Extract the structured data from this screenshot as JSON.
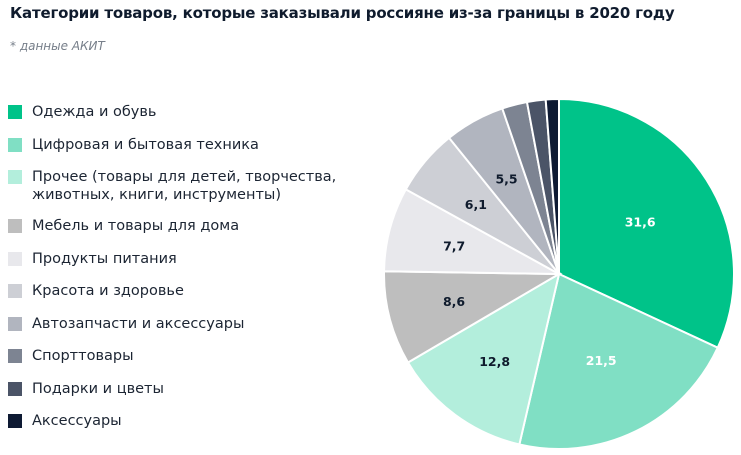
{
  "title": "Категории товаров, которые заказывали россияне из-за границы в 2020 году",
  "subtitle": "* данные АКИТ",
  "chart_data": {
    "type": "pie",
    "title": "Категории товаров, которые заказывали россияне из-за границы в 2020 году",
    "subtitle": "* данные АКИТ",
    "legend_position": "left",
    "start": "top, clockwise",
    "slices": [
      {
        "label": "Одежда и обувь",
        "value": 31.6,
        "value_label": "31,6",
        "color": "#00c389",
        "label_color": "#ffffff"
      },
      {
        "label": "Цифровая и бытовая техника",
        "value": 21.5,
        "value_label": "21,5",
        "color": "#80dfc4",
        "label_color": "#ffffff"
      },
      {
        "label": "Прочее (товары для детей, творчества, животных, книги, инструменты)",
        "value": 12.8,
        "value_label": "12,8",
        "color": "#b3eedc",
        "label_color": "#0f1b2d"
      },
      {
        "label": "Мебель и товары для дома",
        "value": 8.6,
        "value_label": "8,6",
        "color": "#bebebe",
        "label_color": "#0f1b2d"
      },
      {
        "label": "Продукты питания",
        "value": 7.7,
        "value_label": "7,7",
        "color": "#e8e8ec",
        "label_color": "#0f1b2d"
      },
      {
        "label": "Красота и здоровье",
        "value": 6.1,
        "value_label": "6,1",
        "color": "#cdcfd5",
        "label_color": "#0f1b2d"
      },
      {
        "label": "Автозапчасти и аксессуары",
        "value": 5.5,
        "value_label": "5,5",
        "color": "#b1b5bf",
        "label_color": "#0f1b2d"
      },
      {
        "label": "Спорттовары",
        "value": 2.3,
        "value_label": "",
        "color": "#7d8492",
        "label_color": "#0f1b2d"
      },
      {
        "label": "Подарки и цветы",
        "value": 1.7,
        "value_label": "",
        "color": "#4b5467",
        "label_color": "#0f1b2d"
      },
      {
        "label": "Аксессуары",
        "value": 1.2,
        "value_label": "",
        "color": "#0e1a33",
        "label_color": "#0f1b2d"
      }
    ]
  }
}
